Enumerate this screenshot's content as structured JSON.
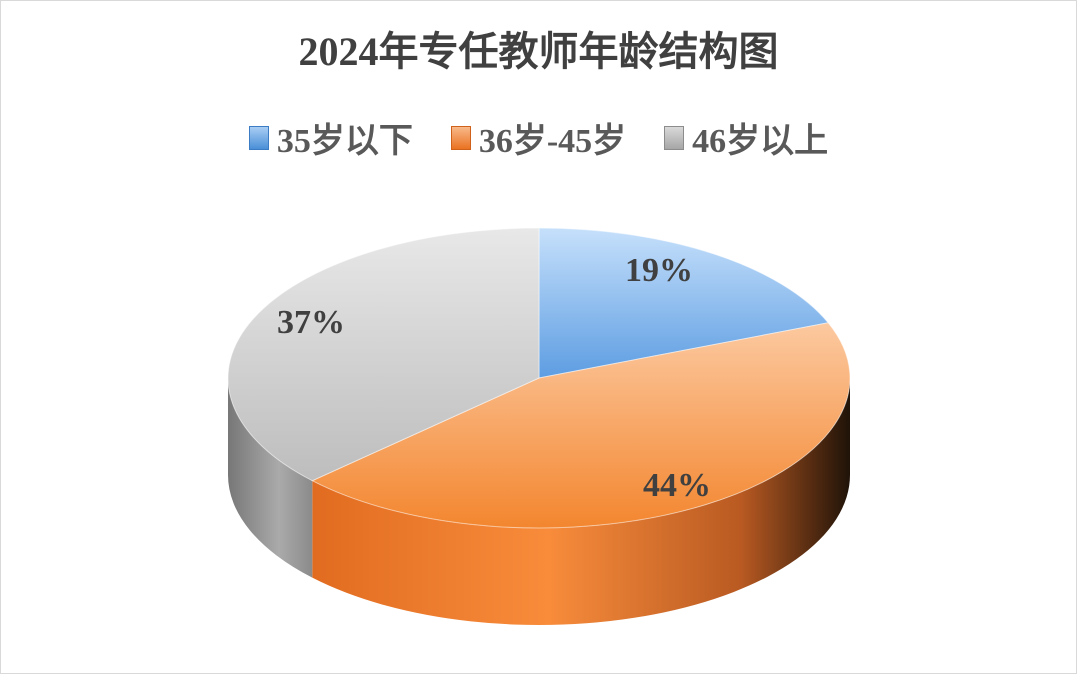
{
  "chart_data": {
    "type": "pie",
    "style": "3d",
    "title": "2024年专任教师年龄结构图",
    "categories": [
      "35岁以下",
      "36岁-45岁",
      "46岁以上"
    ],
    "values": [
      19,
      44,
      37
    ],
    "data_labels": [
      "19%",
      "44%",
      "37%"
    ],
    "colors": [
      "#6fa8e6",
      "#f4893a",
      "#bdbdbd"
    ],
    "legend_position": "top"
  }
}
